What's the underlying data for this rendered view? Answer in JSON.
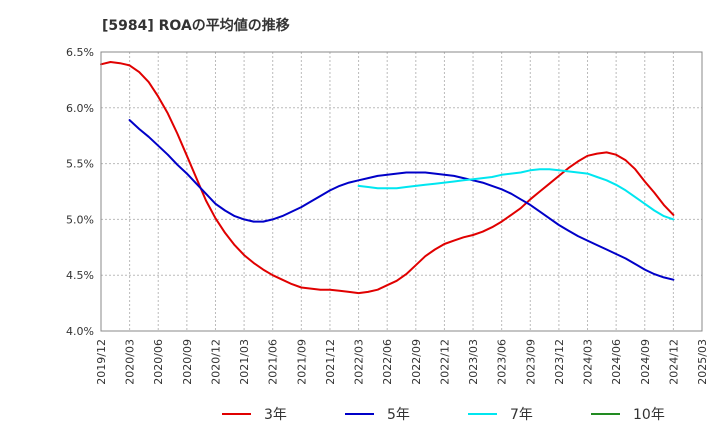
{
  "chart_data": {
    "type": "line",
    "title": "[5984]  ROAの平均値の推移",
    "xlabel": "",
    "ylabel": "",
    "ylim": [
      4.0,
      6.5
    ],
    "yticks": [
      4.0,
      4.5,
      5.0,
      5.5,
      6.0,
      6.5
    ],
    "ytick_labels": [
      "4.0%",
      "4.5%",
      "5.0%",
      "5.5%",
      "6.0%",
      "6.5%"
    ],
    "xlim": [
      "2019/12",
      "2025/03"
    ],
    "xtick_labels": [
      "2019/12",
      "2020/03",
      "2020/06",
      "2020/09",
      "2020/12",
      "2021/03",
      "2021/06",
      "2021/09",
      "2021/12",
      "2022/03",
      "2022/06",
      "2022/09",
      "2022/12",
      "2023/03",
      "2023/06",
      "2023/09",
      "2023/12",
      "2024/03",
      "2024/06",
      "2024/09",
      "2024/12",
      "2025/03"
    ],
    "grid": true,
    "legend_position": "bottom",
    "series": [
      {
        "name": "3年",
        "color": "#e00000",
        "points": [
          [
            "2019/12",
            6.39
          ],
          [
            "2020/01",
            6.41
          ],
          [
            "2020/02",
            6.4
          ],
          [
            "2020/03",
            6.38
          ],
          [
            "2020/04",
            6.32
          ],
          [
            "2020/05",
            6.23
          ],
          [
            "2020/06",
            6.1
          ],
          [
            "2020/07",
            5.95
          ],
          [
            "2020/08",
            5.77
          ],
          [
            "2020/09",
            5.57
          ],
          [
            "2020/10",
            5.37
          ],
          [
            "2020/11",
            5.17
          ],
          [
            "2020/12",
            5.01
          ],
          [
            "2021/01",
            4.88
          ],
          [
            "2021/02",
            4.77
          ],
          [
            "2021/03",
            4.68
          ],
          [
            "2021/04",
            4.61
          ],
          [
            "2021/05",
            4.55
          ],
          [
            "2021/06",
            4.5
          ],
          [
            "2021/07",
            4.46
          ],
          [
            "2021/08",
            4.42
          ],
          [
            "2021/09",
            4.39
          ],
          [
            "2021/10",
            4.38
          ],
          [
            "2021/11",
            4.37
          ],
          [
            "2021/12",
            4.37
          ],
          [
            "2022/01",
            4.36
          ],
          [
            "2022/02",
            4.35
          ],
          [
            "2022/03",
            4.34
          ],
          [
            "2022/04",
            4.35
          ],
          [
            "2022/05",
            4.37
          ],
          [
            "2022/06",
            4.41
          ],
          [
            "2022/07",
            4.45
          ],
          [
            "2022/08",
            4.51
          ],
          [
            "2022/09",
            4.59
          ],
          [
            "2022/10",
            4.67
          ],
          [
            "2022/11",
            4.73
          ],
          [
            "2022/12",
            4.78
          ],
          [
            "2023/01",
            4.81
          ],
          [
            "2023/02",
            4.84
          ],
          [
            "2023/03",
            4.86
          ],
          [
            "2023/04",
            4.89
          ],
          [
            "2023/05",
            4.93
          ],
          [
            "2023/06",
            4.98
          ],
          [
            "2023/07",
            5.04
          ],
          [
            "2023/08",
            5.1
          ],
          [
            "2023/09",
            5.18
          ],
          [
            "2023/10",
            5.25
          ],
          [
            "2023/11",
            5.32
          ],
          [
            "2023/12",
            5.39
          ],
          [
            "2024/01",
            5.46
          ],
          [
            "2024/02",
            5.52
          ],
          [
            "2024/03",
            5.57
          ],
          [
            "2024/04",
            5.59
          ],
          [
            "2024/05",
            5.6
          ],
          [
            "2024/06",
            5.58
          ],
          [
            "2024/07",
            5.53
          ],
          [
            "2024/08",
            5.45
          ],
          [
            "2024/09",
            5.34
          ],
          [
            "2024/10",
            5.24
          ],
          [
            "2024/11",
            5.13
          ],
          [
            "2024/12",
            5.04
          ]
        ]
      },
      {
        "name": "5年",
        "color": "#0000c8",
        "points": [
          [
            "2020/03",
            5.89
          ],
          [
            "2020/04",
            5.81
          ],
          [
            "2020/05",
            5.74
          ],
          [
            "2020/06",
            5.66
          ],
          [
            "2020/07",
            5.58
          ],
          [
            "2020/08",
            5.49
          ],
          [
            "2020/09",
            5.41
          ],
          [
            "2020/10",
            5.32
          ],
          [
            "2020/11",
            5.23
          ],
          [
            "2020/12",
            5.14
          ],
          [
            "2021/01",
            5.08
          ],
          [
            "2021/02",
            5.03
          ],
          [
            "2021/03",
            5.0
          ],
          [
            "2021/04",
            4.98
          ],
          [
            "2021/05",
            4.98
          ],
          [
            "2021/06",
            5.0
          ],
          [
            "2021/07",
            5.03
          ],
          [
            "2021/08",
            5.07
          ],
          [
            "2021/09",
            5.11
          ],
          [
            "2021/10",
            5.16
          ],
          [
            "2021/11",
            5.21
          ],
          [
            "2021/12",
            5.26
          ],
          [
            "2022/01",
            5.3
          ],
          [
            "2022/02",
            5.33
          ],
          [
            "2022/03",
            5.35
          ],
          [
            "2022/04",
            5.37
          ],
          [
            "2022/05",
            5.39
          ],
          [
            "2022/06",
            5.4
          ],
          [
            "2022/07",
            5.41
          ],
          [
            "2022/08",
            5.42
          ],
          [
            "2022/09",
            5.42
          ],
          [
            "2022/10",
            5.42
          ],
          [
            "2022/11",
            5.41
          ],
          [
            "2022/12",
            5.4
          ],
          [
            "2023/01",
            5.39
          ],
          [
            "2023/02",
            5.37
          ],
          [
            "2023/03",
            5.35
          ],
          [
            "2023/04",
            5.33
          ],
          [
            "2023/05",
            5.3
          ],
          [
            "2023/06",
            5.27
          ],
          [
            "2023/07",
            5.23
          ],
          [
            "2023/08",
            5.18
          ],
          [
            "2023/09",
            5.13
          ],
          [
            "2023/10",
            5.07
          ],
          [
            "2023/11",
            5.01
          ],
          [
            "2023/12",
            4.95
          ],
          [
            "2024/01",
            4.9
          ],
          [
            "2024/02",
            4.85
          ],
          [
            "2024/03",
            4.81
          ],
          [
            "2024/04",
            4.77
          ],
          [
            "2024/05",
            4.73
          ],
          [
            "2024/06",
            4.69
          ],
          [
            "2024/07",
            4.65
          ],
          [
            "2024/08",
            4.6
          ],
          [
            "2024/09",
            4.55
          ],
          [
            "2024/10",
            4.51
          ],
          [
            "2024/11",
            4.48
          ],
          [
            "2024/12",
            4.46
          ]
        ]
      },
      {
        "name": "7年",
        "color": "#00e6f0",
        "points": [
          [
            "2022/03",
            5.3
          ],
          [
            "2022/04",
            5.29
          ],
          [
            "2022/05",
            5.28
          ],
          [
            "2022/06",
            5.28
          ],
          [
            "2022/07",
            5.28
          ],
          [
            "2022/08",
            5.29
          ],
          [
            "2022/09",
            5.3
          ],
          [
            "2022/10",
            5.31
          ],
          [
            "2022/11",
            5.32
          ],
          [
            "2022/12",
            5.33
          ],
          [
            "2023/01",
            5.34
          ],
          [
            "2023/02",
            5.35
          ],
          [
            "2023/03",
            5.36
          ],
          [
            "2023/04",
            5.37
          ],
          [
            "2023/05",
            5.38
          ],
          [
            "2023/06",
            5.4
          ],
          [
            "2023/07",
            5.41
          ],
          [
            "2023/08",
            5.42
          ],
          [
            "2023/09",
            5.44
          ],
          [
            "2023/10",
            5.45
          ],
          [
            "2023/11",
            5.45
          ],
          [
            "2023/12",
            5.44
          ],
          [
            "2024/01",
            5.43
          ],
          [
            "2024/02",
            5.42
          ],
          [
            "2024/03",
            5.41
          ],
          [
            "2024/04",
            5.38
          ],
          [
            "2024/05",
            5.35
          ],
          [
            "2024/06",
            5.31
          ],
          [
            "2024/07",
            5.26
          ],
          [
            "2024/08",
            5.2
          ],
          [
            "2024/09",
            5.14
          ],
          [
            "2024/10",
            5.08
          ],
          [
            "2024/11",
            5.03
          ],
          [
            "2024/12",
            5.0
          ]
        ]
      },
      {
        "name": "10年",
        "color": "#228b22",
        "points": []
      }
    ]
  }
}
